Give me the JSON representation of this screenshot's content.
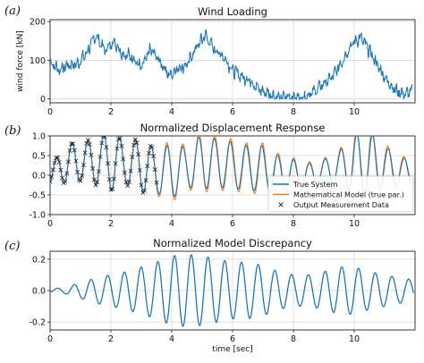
{
  "chart_data": [
    {
      "panel_label": "(a)",
      "type": "line",
      "title": "Wind Loading",
      "xlabel": "",
      "ylabel": "wind force [kN]",
      "xlim": [
        0,
        12
      ],
      "ylim": [
        -10,
        205
      ],
      "xticks": [
        0,
        2,
        4,
        6,
        8,
        10
      ],
      "yticks": [
        0,
        100,
        200
      ],
      "grid": true,
      "series": [
        {
          "color": "#1f77b4",
          "x": [
            0,
            0.3,
            0.6,
            0.9,
            1.2,
            1.5,
            1.8,
            2.1,
            2.4,
            2.7,
            3.0,
            3.3,
            3.6,
            3.9,
            4.2,
            4.5,
            4.8,
            5.1,
            5.4,
            5.7,
            6.0,
            6.3,
            6.6,
            6.9,
            7.2,
            7.5,
            7.8,
            8.1,
            8.4,
            8.7,
            9.0,
            9.3,
            9.6,
            9.9,
            10.2,
            10.5,
            10.8,
            11.1,
            11.4,
            11.7,
            11.9
          ],
          "y": [
            95,
            75,
            88,
            90,
            118,
            165,
            125,
            150,
            115,
            110,
            78,
            128,
            100,
            60,
            80,
            88,
            132,
            165,
            128,
            110,
            75,
            58,
            48,
            22,
            15,
            2,
            4,
            4,
            8,
            20,
            40,
            58,
            98,
            140,
            160,
            125,
            82,
            45,
            20,
            12,
            22
          ]
        }
      ]
    },
    {
      "panel_label": "(b)",
      "type": "line",
      "title": "Normalized Displacement Response",
      "xlabel": "",
      "ylabel": "",
      "xlim": [
        0,
        12
      ],
      "ylim": [
        -1.0,
        1.0
      ],
      "xticks": [
        0,
        2,
        4,
        6,
        8,
        10
      ],
      "yticks": [
        -1.0,
        -0.5,
        0.0,
        0.5,
        1.0
      ],
      "grid": true,
      "legend_position": "lower-right",
      "series": [
        {
          "name": "True System",
          "color": "#1f77b4",
          "marker": "line"
        },
        {
          "name": "Mathematical Model (true par.)",
          "color": "#ff7f0e",
          "marker": "line"
        },
        {
          "name": "Output Measurement Data",
          "color": "#222222",
          "marker": "x",
          "x_range": [
            0,
            3.5
          ]
        }
      ],
      "envelope": {
        "x": [
          0,
          0.5,
          1.0,
          1.5,
          2.0,
          2.5,
          3.0,
          3.5,
          4.0,
          4.5,
          5.0,
          5.5,
          6.0,
          6.5,
          7.0,
          7.5,
          8.0,
          8.5,
          9.0,
          9.5,
          10.0,
          10.5,
          11.0,
          11.5,
          11.9
        ],
        "amplitude": [
          0.2,
          0.5,
          0.5,
          0.6,
          0.75,
          0.55,
          0.7,
          0.55,
          0.7,
          0.5,
          0.7,
          0.6,
          0.6,
          0.55,
          0.6,
          0.45,
          0.4,
          0.3,
          0.3,
          0.4,
          0.75,
          0.8,
          0.5,
          0.35,
          0.3
        ],
        "mean": [
          0,
          0.3,
          0.35,
          0.35,
          0.35,
          0.3,
          0.25,
          0.1,
          0.1,
          0.2,
          0.35,
          0.3,
          0.25,
          0.2,
          0.15,
          0.05,
          0.0,
          0.0,
          0.1,
          0.2,
          0.3,
          0.3,
          0.25,
          0.1,
          0.1
        ]
      }
    },
    {
      "panel_label": "(c)",
      "type": "line",
      "title": "Normalized Model Discrepancy",
      "xlabel": "time [sec]",
      "ylabel": "",
      "xlim": [
        0,
        12
      ],
      "ylim": [
        -0.25,
        0.25
      ],
      "xticks": [
        0,
        2,
        4,
        6,
        8,
        10
      ],
      "yticks": [
        -0.2,
        0.0,
        0.2
      ],
      "grid": true,
      "series": [
        {
          "color": "#1f77b4",
          "envelope_x": [
            0,
            0.5,
            1.0,
            1.5,
            2.0,
            2.5,
            3.0,
            3.5,
            4.0,
            4.5,
            5.0,
            5.5,
            6.0,
            6.5,
            7.0,
            7.5,
            8.0,
            8.5,
            9.0,
            9.5,
            10.0,
            10.5,
            11.0,
            11.5,
            11.9
          ],
          "envelope_amplitude": [
            0.01,
            0.02,
            0.05,
            0.08,
            0.1,
            0.12,
            0.15,
            0.18,
            0.22,
            0.23,
            0.22,
            0.2,
            0.18,
            0.18,
            0.16,
            0.12,
            0.1,
            0.1,
            0.12,
            0.15,
            0.15,
            0.12,
            0.1,
            0.08,
            0.07
          ],
          "period": 0.55
        }
      ]
    }
  ]
}
